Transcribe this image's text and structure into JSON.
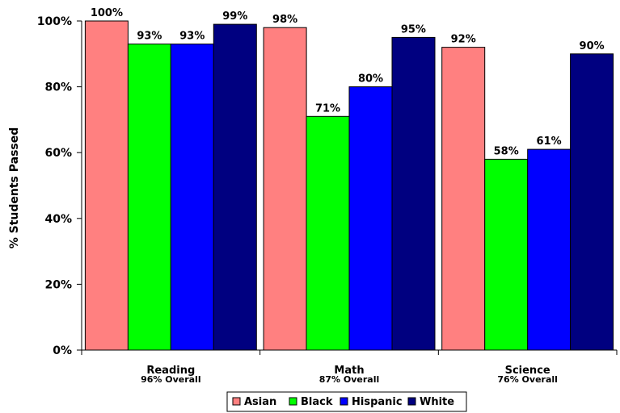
{
  "chart_data": {
    "type": "bar",
    "categories": [
      "Reading",
      "Math",
      "Science"
    ],
    "category_sublabels": [
      "96% Overall",
      "87% Overall",
      "76% Overall"
    ],
    "series": [
      {
        "name": "Asian",
        "color": "#ff8080",
        "values": [
          100,
          98,
          92
        ],
        "labels": [
          "100%",
          "98%",
          "92%"
        ]
      },
      {
        "name": "Black",
        "color": "#00ff00",
        "values": [
          93,
          71,
          58
        ],
        "labels": [
          "93%",
          "71%",
          "58%"
        ]
      },
      {
        "name": "Hispanic",
        "color": "#0000ff",
        "values": [
          93,
          80,
          61
        ],
        "labels": [
          "93%",
          "80%",
          "61%"
        ]
      },
      {
        "name": "White",
        "color": "#000080",
        "values": [
          99,
          95,
          90
        ],
        "labels": [
          "99%",
          "95%",
          "90%"
        ]
      }
    ],
    "ylabel": "% Students Passed",
    "ylim": [
      0,
      100
    ],
    "yticks": [
      0,
      20,
      40,
      60,
      80,
      100
    ],
    "ytick_labels": [
      "0%",
      "20%",
      "40%",
      "60%",
      "80%",
      "100%"
    ],
    "grid": false,
    "legend_position": "bottom"
  }
}
